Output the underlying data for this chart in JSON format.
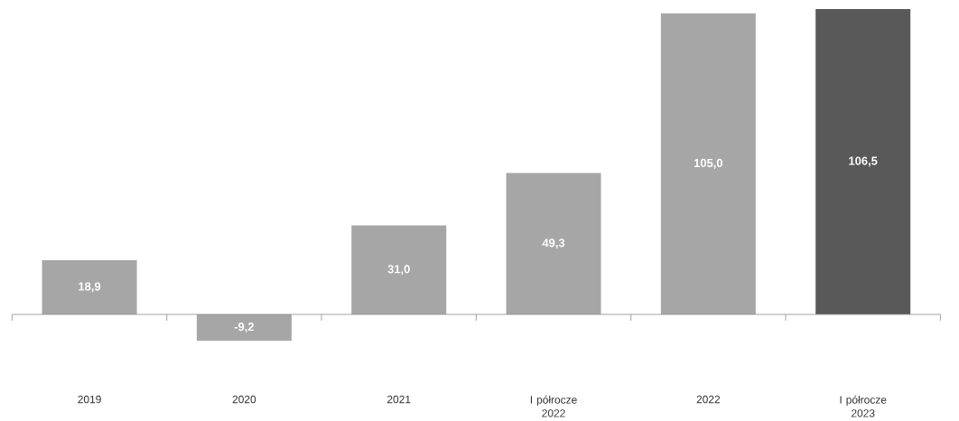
{
  "chart_data": {
    "type": "bar",
    "categories": [
      "2019",
      "2020",
      "2021",
      "I półrocze 2022",
      "2022",
      "I półrocze 2023"
    ],
    "values": [
      18.9,
      -9.2,
      31.0,
      49.3,
      105.0,
      106.5
    ],
    "value_labels": [
      "18,9",
      "-9,2",
      "31,0",
      "49,3",
      "105,0",
      "106,5"
    ],
    "colors": [
      "#a6a6a6",
      "#a6a6a6",
      "#a6a6a6",
      "#a6a6a6",
      "#a6a6a6",
      "#595959"
    ]
  }
}
